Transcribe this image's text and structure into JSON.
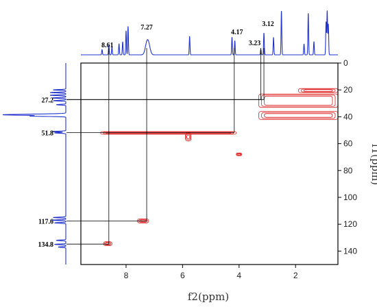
{
  "chart_data": {
    "type": "scatter",
    "subtype": "2D HSQC NMR contour plot with 1D projections",
    "title": "",
    "xlabel": "f2(ppm)",
    "ylabel": "f1(ppm)",
    "xlim": [
      9.6,
      0.5
    ],
    "ylim": [
      0,
      150
    ],
    "x_reversed": true,
    "y_reversed": true,
    "x_ticks": [
      8,
      6,
      4,
      2
    ],
    "y_ticks": [
      0,
      20,
      40,
      60,
      80,
      100,
      120,
      140
    ],
    "grid": false,
    "legend": "none",
    "colors": {
      "contour": "#dd2222",
      "projection": "#2233cc",
      "guide_line": "#000000"
    },
    "proton_labels": [
      "8.61",
      "7.27",
      "4.17",
      "3.23",
      "3.12"
    ],
    "carbon_labels": [
      "27.2",
      "51.8",
      "117.6",
      "134.8"
    ],
    "correlations": [
      {
        "h": 8.61,
        "c": 134.8,
        "h_label": "8.61",
        "c_label": "134.8"
      },
      {
        "h": 7.27,
        "c": 117.6,
        "h_label": "7.27",
        "c_label": "117.6"
      },
      {
        "h": 4.17,
        "c": 51.8,
        "h_label": "4.17",
        "c_label": "51.8"
      },
      {
        "h": 3.23,
        "c": 27.2,
        "h_label": "3.23",
        "c_label": "27.2"
      },
      {
        "h": 3.12,
        "c": 27.2,
        "h_label": "3.12",
        "c_label": "27.2"
      }
    ],
    "proton_projection_peaks": [
      {
        "x": 8.85,
        "h": 0.12
      },
      {
        "x": 8.61,
        "h": 0.22
      },
      {
        "x": 8.5,
        "h": 0.18
      },
      {
        "x": 8.25,
        "h": 0.25
      },
      {
        "x": 8.12,
        "h": 0.3
      },
      {
        "x": 8.0,
        "h": 0.55
      },
      {
        "x": 7.93,
        "h": 0.65
      },
      {
        "x": 7.27,
        "h": 0.22
      },
      {
        "x": 7.2,
        "h": 0.2
      },
      {
        "x": 5.75,
        "h": 0.42
      },
      {
        "x": 4.25,
        "h": 0.4
      },
      {
        "x": 4.15,
        "h": 0.32
      },
      {
        "x": 3.23,
        "h": 0.13
      },
      {
        "x": 3.12,
        "h": 0.5
      },
      {
        "x": 2.78,
        "h": 0.4
      },
      {
        "x": 2.5,
        "h": 1.0
      },
      {
        "x": 1.7,
        "h": 0.25
      },
      {
        "x": 1.55,
        "h": 0.95
      },
      {
        "x": 1.35,
        "h": 0.3
      },
      {
        "x": 0.92,
        "h": 0.75
      },
      {
        "x": 0.88,
        "h": 1.0
      },
      {
        "x": 0.84,
        "h": 0.7
      }
    ],
    "carbon_projection_peaks": [
      {
        "y": 20,
        "h": 0.2
      },
      {
        "y": 22,
        "h": 0.25
      },
      {
        "y": 24,
        "h": 0.25
      },
      {
        "y": 26,
        "h": 0.22
      },
      {
        "y": 28,
        "h": 0.2
      },
      {
        "y": 31,
        "h": 0.15
      },
      {
        "y": 38.5,
        "h": 1.0
      },
      {
        "y": 39.5,
        "h": 0.5
      },
      {
        "y": 51,
        "h": 0.22
      },
      {
        "y": 52,
        "h": 0.18
      },
      {
        "y": 115,
        "h": 0.2
      },
      {
        "y": 117,
        "h": 0.22
      },
      {
        "y": 119,
        "h": 0.18
      },
      {
        "y": 132,
        "h": 0.15
      },
      {
        "y": 135,
        "h": 0.18
      },
      {
        "y": 137,
        "h": 0.12
      }
    ],
    "contour_regions": [
      {
        "x": [
          1.9,
          0.5
        ],
        "y": [
          19,
          22
        ]
      },
      {
        "x": [
          3.3,
          0.5
        ],
        "y": [
          23,
          33
        ]
      },
      {
        "x": [
          3.3,
          0.5
        ],
        "y": [
          36,
          42
        ]
      },
      {
        "x": [
          8.9,
          4.1
        ],
        "y": [
          51,
          53
        ]
      },
      {
        "x": [
          5.9,
          5.7
        ],
        "y": [
          52,
          58
        ]
      },
      {
        "x": [
          4.1,
          3.9
        ],
        "y": [
          67,
          69
        ]
      },
      {
        "x": [
          7.6,
          7.2
        ],
        "y": [
          116,
          119
        ]
      },
      {
        "x": [
          8.8,
          8.5
        ],
        "y": [
          133,
          136
        ]
      }
    ]
  }
}
